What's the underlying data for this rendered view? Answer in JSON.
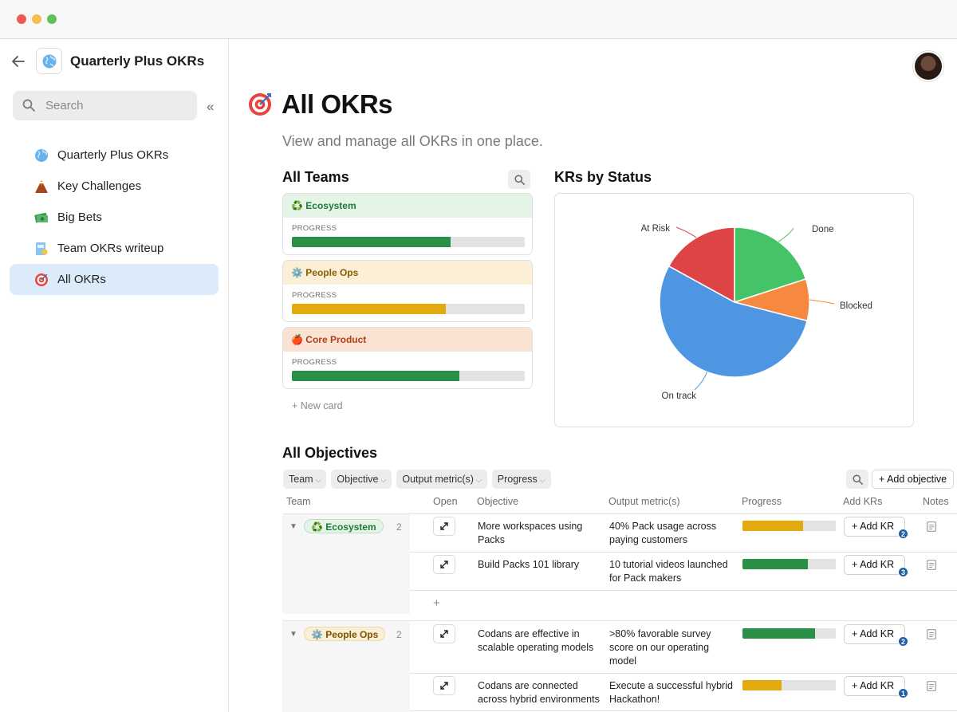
{
  "window": {
    "traffic_lights": [
      "close",
      "minimize",
      "maximize"
    ]
  },
  "sidebar": {
    "doc_title": "Quarterly Plus OKRs",
    "search_placeholder": "Search",
    "items": [
      {
        "label": "Quarterly Plus OKRs",
        "icon": "globe-icon"
      },
      {
        "label": "Key Challenges",
        "icon": "volcano-icon"
      },
      {
        "label": "Big Bets",
        "icon": "money-icon"
      },
      {
        "label": "Team OKRs writeup",
        "icon": "document-icon"
      },
      {
        "label": "All OKRs",
        "icon": "target-icon",
        "active": true
      }
    ]
  },
  "page": {
    "title": "All OKRs",
    "subtitle": "View and manage all OKRs in one place."
  },
  "teams": {
    "heading": "All Teams",
    "cards": [
      {
        "name": "♻️ Ecosystem",
        "progress_label": "PROGRESS",
        "progress": 0.68,
        "header_bg": "#e4f4e6",
        "header_color": "#1e7a3a",
        "bar_color": "#2a9048"
      },
      {
        "name": "⚙️ People Ops",
        "progress_label": "PROGRESS",
        "progress": 0.66,
        "header_bg": "#fbefd6",
        "header_color": "#8a5d00",
        "bar_color": "#e2aa0f"
      },
      {
        "name": "🍎 Core Product",
        "progress_label": "PROGRESS",
        "progress": 0.72,
        "header_bg": "#fbe3d3",
        "header_color": "#b04014",
        "bar_color": "#2a9048"
      }
    ],
    "new_card": "+   New card"
  },
  "chart_data": {
    "type": "pie",
    "title": "KRs by Status",
    "slices": [
      {
        "label": "Done",
        "value": 20,
        "color": "#45c367"
      },
      {
        "label": "Blocked",
        "value": 9,
        "color": "#f6883f"
      },
      {
        "label": "On track",
        "value": 54,
        "color": "#4f96e2"
      },
      {
        "label": "At Risk",
        "value": 17,
        "color": "#de4446"
      }
    ]
  },
  "objectives": {
    "heading": "All Objectives",
    "filters": [
      "Team",
      "Objective",
      "Output metric(s)",
      "Progress"
    ],
    "add_objective": "+ Add objective",
    "columns": [
      "Team",
      "Open",
      "Objective",
      "Output metric(s)",
      "Progress",
      "Add KRs",
      "Notes"
    ],
    "groups": [
      {
        "team": "♻️ Ecosystem",
        "count": "2",
        "rows": [
          {
            "objective": [
              "More workspaces using",
              "Packs"
            ],
            "metric": [
              "40% Pack usage across",
              "paying customers"
            ],
            "progress": 0.65,
            "bar_color": "#e2aa0f",
            "add_kr": "+ Add KR",
            "kr_count": "2"
          },
          {
            "objective": [
              "Build Packs 101 library"
            ],
            "metric": [
              "10 tutorial videos launched",
              "for Pack makers"
            ],
            "progress": 0.7,
            "bar_color": "#2a9048",
            "add_kr": "+ Add KR",
            "kr_count": "3"
          }
        ]
      },
      {
        "team": "⚙️ People Ops",
        "count": "2",
        "rows": [
          {
            "objective": [
              "Codans are effective in",
              "scalable operating models"
            ],
            "metric": [
              ">80% favorable survey",
              "score on our operating",
              "model"
            ],
            "progress": 0.78,
            "bar_color": "#2a9048",
            "add_kr": "+ Add KR",
            "kr_count": "2"
          },
          {
            "objective": [
              "Codans are connected",
              "across hybrid environments"
            ],
            "metric": [
              "Execute a successful hybrid",
              "Hackathon!"
            ],
            "progress": 0.42,
            "bar_color": "#e2aa0f",
            "add_kr": "+ Add KR",
            "kr_count": "1"
          }
        ]
      }
    ],
    "add_row": "+"
  }
}
